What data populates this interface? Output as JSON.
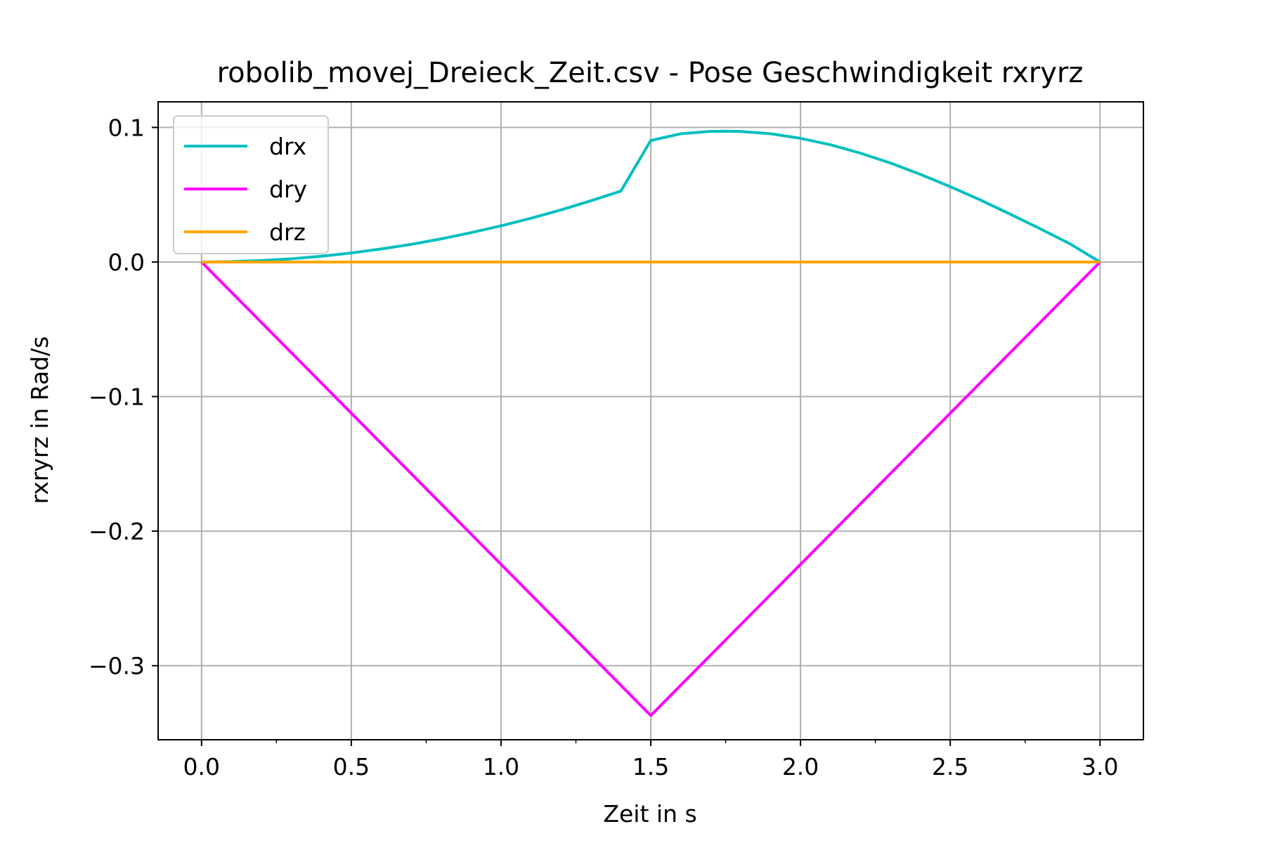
{
  "chart_data": {
    "type": "line",
    "title": "robolib_movej_Dreieck_Zeit.csv - Pose Geschwindigkeit rxryrz",
    "xlabel": "Zeit in s",
    "ylabel": "rxryrz in Rad/s",
    "xlim": [
      -0.145,
      3.145
    ],
    "ylim": [
      -0.355,
      0.119
    ],
    "xticks": [
      0.0,
      0.5,
      1.0,
      1.5,
      2.0,
      2.5,
      3.0
    ],
    "xtick_labels": [
      "0.0",
      "0.5",
      "1.0",
      "1.5",
      "2.0",
      "2.5",
      "3.0"
    ],
    "yticks": [
      0.1,
      0.0,
      -0.1,
      -0.2,
      -0.3
    ],
    "ytick_labels": [
      "0.1",
      "0.0",
      "−0.1",
      "−0.2",
      "−0.3"
    ],
    "grid": true,
    "legend_position": "top-left",
    "series": [
      {
        "name": "drx",
        "color": "#00bfbf",
        "x": [
          0.0,
          0.1,
          0.2,
          0.3,
          0.4,
          0.5,
          0.6,
          0.7,
          0.8,
          0.9,
          1.0,
          1.1,
          1.2,
          1.3,
          1.4,
          1.5,
          1.6,
          1.7,
          1.75,
          1.8,
          1.9,
          2.0,
          2.1,
          2.2,
          2.3,
          2.4,
          2.5,
          2.6,
          2.7,
          2.8,
          2.9,
          3.0
        ],
        "values": [
          0.0,
          0.0003,
          0.0011,
          0.0024,
          0.0043,
          0.0067,
          0.0097,
          0.0131,
          0.0172,
          0.0218,
          0.0269,
          0.0325,
          0.0387,
          0.0455,
          0.0527,
          0.0903,
          0.0953,
          0.0971,
          0.0972,
          0.097,
          0.0953,
          0.0919,
          0.0871,
          0.0809,
          0.0736,
          0.0652,
          0.056,
          0.0461,
          0.0356,
          0.0247,
          0.0135,
          0.0
        ]
      },
      {
        "name": "dry",
        "color": "#ff00ff",
        "x": [
          0.0,
          1.5,
          3.0
        ],
        "values": [
          0.0,
          -0.337,
          0.0
        ]
      },
      {
        "name": "drz",
        "color": "#ffa500",
        "x": [
          0.0,
          3.0
        ],
        "values": [
          0.0,
          0.0
        ]
      }
    ]
  }
}
